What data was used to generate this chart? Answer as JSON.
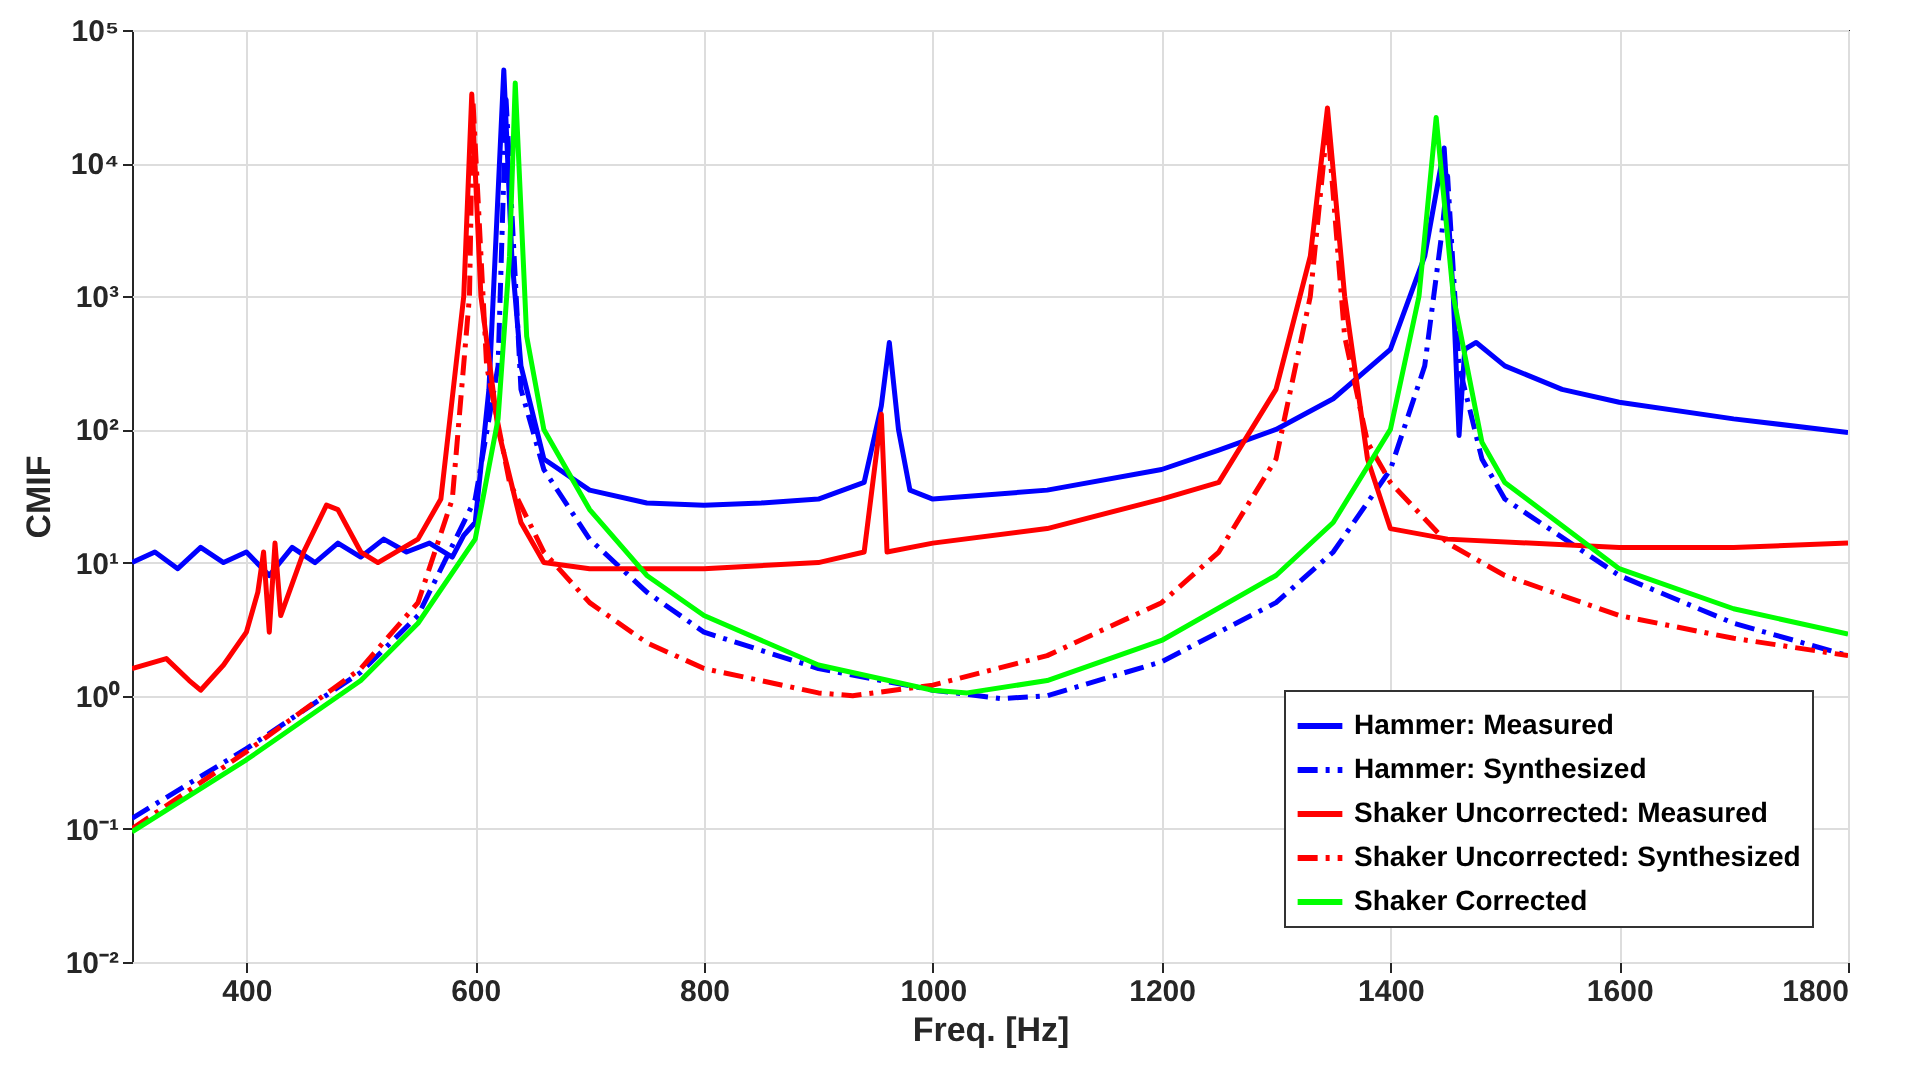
{
  "chart_data": {
    "type": "line",
    "xlabel": "Freq. [Hz]",
    "ylabel": "CMIF",
    "log": "y",
    "grid": true,
    "legend": "bottom right",
    "xlim": [
      300,
      1800
    ],
    "xticks": [
      400,
      600,
      800,
      1000,
      1200,
      1400,
      1600,
      1800
    ],
    "ylim": [
      0.01,
      100000
    ],
    "yticks": [
      {
        "value": 0.01,
        "label": "10⁻²"
      },
      {
        "value": 0.1,
        "label": "10⁻¹"
      },
      {
        "value": 1,
        "label": "10⁰"
      },
      {
        "value": 10,
        "label": "10¹"
      },
      {
        "value": 100,
        "label": "10²"
      },
      {
        "value": 1000,
        "label": "10³"
      },
      {
        "value": 10000,
        "label": "10⁴"
      },
      {
        "value": 100000,
        "label": "10⁵"
      }
    ],
    "series": [
      {
        "name": "Hammer: Measured",
        "color": "#0000ff",
        "line_style": "solid",
        "x": [
          300,
          320,
          340,
          360,
          380,
          400,
          420,
          440,
          460,
          480,
          500,
          520,
          540,
          560,
          580,
          590,
          600,
          612,
          625,
          632,
          640,
          660,
          700,
          750,
          800,
          850,
          900,
          940,
          955,
          962,
          970,
          980,
          1000,
          1100,
          1200,
          1250,
          1300,
          1350,
          1400,
          1430,
          1447,
          1455,
          1460,
          1465,
          1475,
          1500,
          1550,
          1600,
          1700,
          1800
        ],
        "values": [
          10,
          12,
          9,
          13,
          10,
          12,
          8,
          13,
          10,
          14,
          11,
          15,
          12,
          14,
          11,
          16,
          20,
          200,
          50000,
          2000,
          300,
          60,
          35,
          28,
          27,
          28,
          30,
          40,
          150,
          450,
          100,
          35,
          30,
          35,
          50,
          70,
          100,
          170,
          400,
          2000,
          13000,
          1000,
          90,
          400,
          450,
          300,
          200,
          160,
          120,
          95
        ]
      },
      {
        "name": "Hammer: Synthesized",
        "color": "#0000ff",
        "line_style": "dashed",
        "x": [
          300,
          400,
          500,
          550,
          600,
          620,
          627,
          640,
          660,
          700,
          750,
          800,
          900,
          1000,
          1060,
          1100,
          1200,
          1300,
          1350,
          1400,
          1430,
          1445,
          1450,
          1460,
          1480,
          1500,
          1600,
          1700,
          1800
        ],
        "values": [
          0.12,
          0.4,
          1.5,
          4,
          30,
          300,
          30000,
          200,
          50,
          15,
          6,
          3,
          1.6,
          1.1,
          0.95,
          1,
          1.8,
          5,
          12,
          50,
          300,
          3000,
          8000,
          300,
          60,
          30,
          8,
          3.5,
          2
        ]
      },
      {
        "name": "Shaker Uncorrected: Measured",
        "color": "#ff0000",
        "line_style": "solid",
        "x": [
          300,
          330,
          350,
          360,
          380,
          400,
          410,
          415,
          420,
          425,
          430,
          450,
          470,
          480,
          500,
          515,
          550,
          570,
          590,
          597,
          605,
          620,
          640,
          660,
          700,
          800,
          900,
          940,
          955,
          960,
          1000,
          1100,
          1200,
          1250,
          1300,
          1330,
          1345,
          1360,
          1380,
          1400,
          1450,
          1600,
          1700,
          1800
        ],
        "values": [
          1.6,
          1.9,
          1.3,
          1.1,
          1.7,
          3,
          6,
          12,
          3,
          14,
          4,
          12,
          27,
          25,
          12,
          10,
          15,
          30,
          1000,
          33000,
          1000,
          100,
          20,
          10,
          9,
          9,
          10,
          12,
          130,
          12,
          14,
          18,
          30,
          40,
          200,
          2000,
          26000,
          1000,
          60,
          18,
          15,
          13,
          13,
          14
        ]
      },
      {
        "name": "Shaker Uncorrected: Synthesized",
        "color": "#ff0000",
        "line_style": "dashed",
        "x": [
          300,
          400,
          500,
          550,
          580,
          595,
          598,
          610,
          630,
          660,
          700,
          750,
          800,
          900,
          930,
          1000,
          1100,
          1200,
          1250,
          1300,
          1330,
          1345,
          1360,
          1380,
          1400,
          1450,
          1500,
          1600,
          1700,
          1800
        ],
        "values": [
          0.1,
          0.38,
          1.6,
          5,
          30,
          1000,
          30000,
          300,
          40,
          12,
          5,
          2.5,
          1.6,
          1.05,
          1,
          1.2,
          2,
          5,
          12,
          60,
          1000,
          20000,
          500,
          80,
          40,
          14,
          8,
          4,
          2.7,
          2
        ]
      },
      {
        "name": "Shaker Corrected",
        "color": "#00ff00",
        "line_style": "solid",
        "x": [
          300,
          400,
          500,
          550,
          600,
          620,
          630,
          635,
          645,
          660,
          700,
          750,
          800,
          900,
          1000,
          1030,
          1100,
          1200,
          1300,
          1350,
          1400,
          1425,
          1440,
          1455,
          1480,
          1500,
          1600,
          1700,
          1800
        ],
        "values": [
          0.095,
          0.33,
          1.3,
          3.5,
          15,
          120,
          2000,
          40000,
          500,
          100,
          25,
          8,
          4,
          1.7,
          1.1,
          1.05,
          1.3,
          2.6,
          8,
          20,
          100,
          1000,
          22000,
          1000,
          80,
          40,
          9,
          4.5,
          2.9
        ]
      }
    ]
  }
}
